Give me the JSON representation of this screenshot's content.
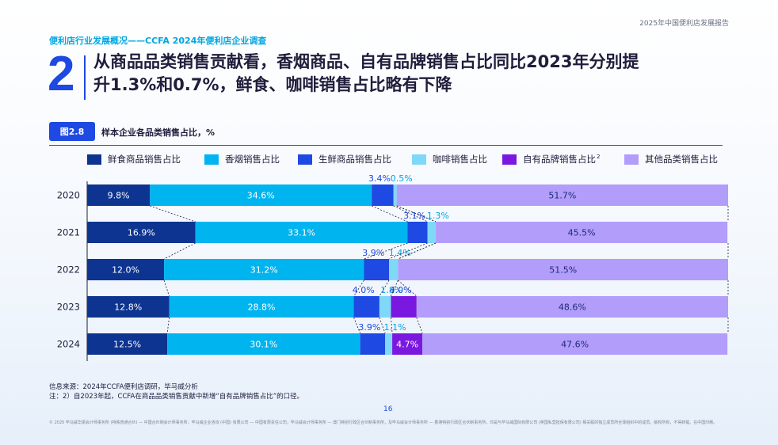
{
  "header": {
    "report_title": "2025年中国便利店发展报告",
    "kicker": "便利店行业发展概况——CCFA 2024年便利店企业调查",
    "section_number": "2",
    "headline_line1": "从商品品类销售贡献看，香烟商品、自有品牌销售占比同比2023年分别提",
    "headline_line2": "升1.3%和0.7%，鲜食、咖啡销售占比略有下降"
  },
  "figure": {
    "badge": "图2.8",
    "title": "样本企业各品类销售占比，%"
  },
  "colors": {
    "fresh_food": "#0d3490",
    "cigarette": "#00b4f0",
    "produce": "#1e49e2",
    "coffee": "#7fd8f8",
    "private_label": "#7b18e0",
    "other": "#b29dfa"
  },
  "chart_data": {
    "type": "bar",
    "orientation": "horizontal",
    "stacked": true,
    "categories": [
      "2020",
      "2021",
      "2022",
      "2023",
      "2024"
    ],
    "xlim": [
      0,
      100
    ],
    "grid": false,
    "legend_position": "top",
    "series": [
      {
        "name": "鲜食商品销售占比",
        "color_key": "fresh_food",
        "values": [
          9.8,
          16.9,
          12.0,
          12.8,
          12.5
        ],
        "labels": [
          "9.8%",
          "16.9%",
          "12.0%",
          "12.8%",
          "12.5%"
        ]
      },
      {
        "name": "香烟销售占比",
        "color_key": "cigarette",
        "values": [
          34.6,
          33.1,
          31.2,
          28.8,
          30.1
        ],
        "labels": [
          "34.6%",
          "33.1%",
          "31.2%",
          "28.8%",
          "30.1%"
        ]
      },
      {
        "name": "生鲜商品销售占比",
        "color_key": "produce",
        "values": [
          3.4,
          3.1,
          3.9,
          4.0,
          3.9
        ],
        "labels": [
          "3.4%",
          "3.1%",
          "3.9%",
          "4.0%",
          "3.9%"
        ]
      },
      {
        "name": "咖啡销售占比",
        "color_key": "coffee",
        "values": [
          0.5,
          1.3,
          1.4,
          1.8,
          1.1
        ],
        "labels": [
          "0.5%",
          "1.3%",
          "1.4%",
          "1.8%",
          "1.1%"
        ]
      },
      {
        "name": "自有品牌销售占比",
        "legend_sup": "2",
        "color_key": "private_label",
        "values": [
          0,
          0,
          0,
          4.0,
          4.7
        ],
        "labels": [
          "",
          "",
          "",
          "4.0%",
          "4.7%"
        ]
      },
      {
        "name": "其他品类销售占比",
        "color_key": "other",
        "values": [
          51.7,
          45.5,
          51.5,
          48.6,
          47.6
        ],
        "labels": [
          "51.7%",
          "45.5%",
          "51.5%",
          "48.6%",
          "47.6%"
        ]
      }
    ]
  },
  "notes": {
    "source": "信息来源：2024年CCFA便利店调研，毕马威分析",
    "note": "注：2）自2023年起，CCFA在商品品类销售贡献中新增“自有品牌销售占比”的口径。"
  },
  "page_number": "16",
  "disclaimer": "© 2025 毕马威华振会计师事务所 (特殊普通合伙) — 中国合伙制会计师事务所，毕马威企业咨询 (中国) 有限公司 — 中国有限责任公司，毕马威会计师事务所 — 澳门特别行政区合伙制事务所，及毕马威会计师事务所 — 香港特别行政区合伙制事务所，均是与毕马威国际有限公司 (英国私营担保有限公司) 相关联的独立成员所全球组织中的成员。版权所有，不得转载。在中国印刷。"
}
